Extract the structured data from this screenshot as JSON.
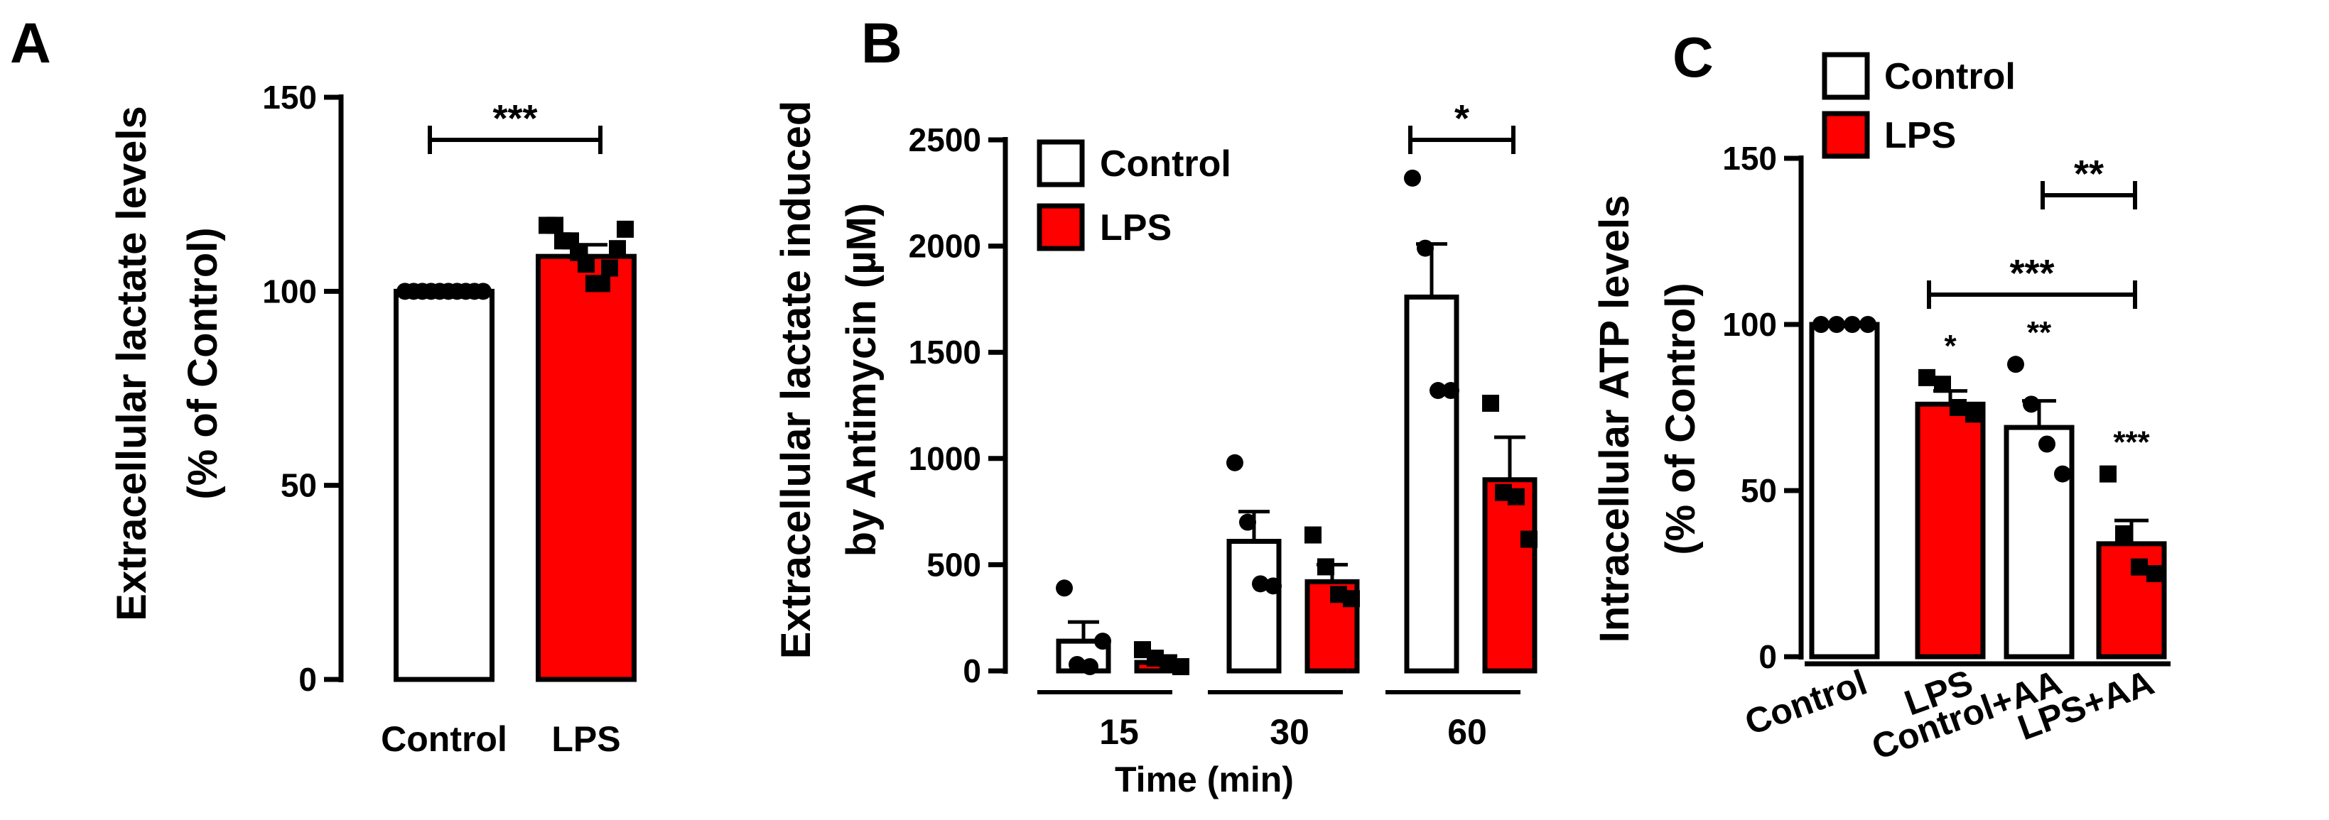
{
  "chart_data": [
    {
      "panel": "A",
      "type": "bar",
      "ylabel": [
        "Extracellular lactate levels",
        "(% of Control)"
      ],
      "ylim": [
        0,
        150
      ],
      "yticks": [
        0,
        50,
        100,
        150
      ],
      "categories": [
        "Control",
        "LPS"
      ],
      "values": [
        100,
        109
      ],
      "errors": [
        0,
        3
      ],
      "fill_colors": [
        "#ffffff",
        "#ff0000"
      ],
      "points": [
        {
          "marker": "circle",
          "values": [
            100,
            100,
            100,
            100,
            100,
            100,
            100,
            100,
            100,
            100
          ]
        },
        {
          "marker": "square",
          "values": [
            117,
            117,
            113,
            113,
            110,
            107,
            102,
            102,
            106,
            111,
            116
          ]
        }
      ],
      "significance": [
        {
          "from": 0,
          "to": 1,
          "label": "***"
        }
      ]
    },
    {
      "panel": "B",
      "type": "bar",
      "ylabel": [
        "Extracellular lactate induced",
        "by Antimycin  (µM)"
      ],
      "xlabel": "Time (min)",
      "ylim": [
        0,
        2500
      ],
      "yticks": [
        0,
        500,
        1000,
        1500,
        2000,
        2500
      ],
      "categories": [
        "15",
        "30",
        "60"
      ],
      "legend": [
        {
          "label": "Control",
          "color": "#ffffff"
        },
        {
          "label": "LPS",
          "color": "#ff0000"
        }
      ],
      "series": [
        {
          "name": "Control",
          "marker": "circle",
          "values": [
            140,
            610,
            1760
          ],
          "errors": [
            90,
            140,
            250
          ],
          "points": [
            [
              390,
              30,
              20,
              140
            ],
            [
              980,
              700,
              410,
              400
            ],
            [
              2320,
              1990,
              1320,
              1320
            ]
          ]
        },
        {
          "name": "LPS",
          "marker": "square",
          "values": [
            40,
            420,
            900
          ],
          "errors": [
            30,
            80,
            200
          ],
          "points": [
            [
              100,
              60,
              30,
              20
            ],
            [
              640,
              490,
              360,
              340
            ],
            [
              1260,
              840,
              820,
              620
            ]
          ]
        }
      ],
      "significance": [
        {
          "group": 2,
          "label": "*"
        }
      ]
    },
    {
      "panel": "C",
      "type": "bar",
      "ylabel": [
        "Intracellular ATP levels",
        "(% of Control)"
      ],
      "ylim": [
        0,
        150
      ],
      "yticks": [
        0,
        50,
        100,
        150
      ],
      "categories": [
        "Control",
        "LPS",
        "Control+AA",
        "LPS+AA"
      ],
      "values": [
        100,
        76,
        69,
        34
      ],
      "errors": [
        0,
        4,
        8,
        7
      ],
      "fill_colors": [
        "#ffffff",
        "#ff0000",
        "#ffffff",
        "#ff0000"
      ],
      "markers": [
        "circle",
        "square",
        "circle",
        "square"
      ],
      "points": [
        [
          100,
          100,
          100,
          100
        ],
        [
          84,
          82,
          75,
          73
        ],
        [
          88,
          76,
          64,
          55
        ],
        [
          55,
          37,
          27,
          25
        ]
      ],
      "bar_labels": [
        "",
        "*",
        "**",
        "***"
      ],
      "legend": [
        {
          "label": "Control",
          "color": "#ffffff"
        },
        {
          "label": "LPS",
          "color": "#ff0000"
        }
      ],
      "significance": [
        {
          "from": 2,
          "to": 3,
          "label": "**"
        },
        {
          "from": 1,
          "to": 3,
          "label": "***"
        }
      ]
    }
  ]
}
